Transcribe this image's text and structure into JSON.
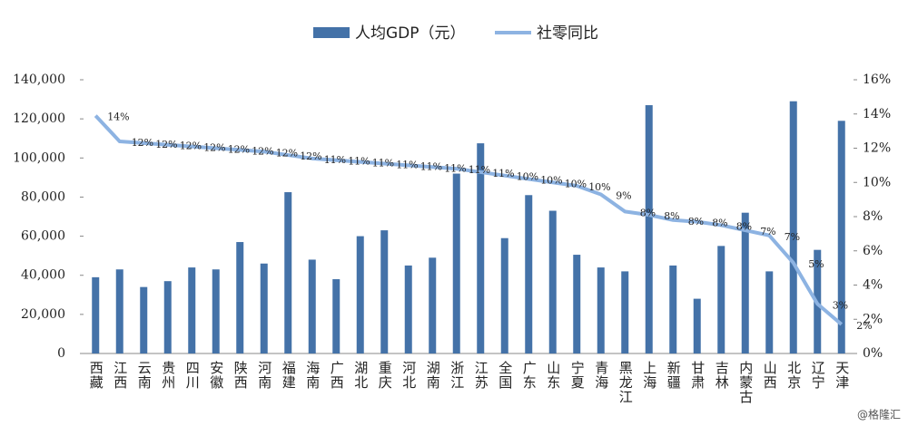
{
  "chart_data": {
    "type": "bar_line",
    "categories": [
      "西藏",
      "江西",
      "云南",
      "贵州",
      "四川",
      "安徽",
      "陕西",
      "河南",
      "福建",
      "海南",
      "广西",
      "湖北",
      "重庆",
      "河北",
      "湖南",
      "浙江",
      "江苏",
      "全国",
      "广东",
      "山东",
      "宁夏",
      "青海",
      "黑龙江",
      "上海",
      "新疆",
      "甘肃",
      "吉林",
      "内蒙古",
      "山西",
      "北京",
      "辽宁",
      "天津"
    ],
    "series": [
      {
        "name": "人均GDP（元）",
        "type": "bar",
        "color": "#4472a8",
        "values": [
          39000,
          43000,
          34000,
          37000,
          44000,
          43000,
          57000,
          46000,
          82500,
          48000,
          38000,
          60000,
          63000,
          45000,
          49000,
          92000,
          107500,
          59000,
          81000,
          73000,
          50500,
          44000,
          42000,
          127000,
          45000,
          28000,
          55000,
          72000,
          42000,
          129000,
          53000,
          119000
        ]
      },
      {
        "name": "社零同比",
        "type": "line",
        "axis": "y2",
        "color": "#8db3e2",
        "values": [
          13.9,
          12.4,
          12.3,
          12.2,
          12.1,
          12.0,
          11.9,
          11.8,
          11.6,
          11.4,
          11.3,
          11.2,
          11.1,
          11.0,
          10.9,
          10.8,
          10.6,
          10.4,
          10.2,
          10.0,
          9.8,
          9.3,
          8.3,
          8.1,
          7.8,
          7.7,
          7.5,
          7.2,
          6.9,
          5.3,
          2.9,
          1.7
        ],
        "value_labels": [
          "14%",
          "12%",
          "12%",
          "12%",
          "12%",
          "12%",
          "12%",
          "12%",
          "12%",
          "11%",
          "11%",
          "11%",
          "11%",
          "11%",
          "11%",
          "11%",
          "11%",
          "10%",
          "10%",
          "10%",
          "10%",
          "9%",
          "8%",
          "8%",
          "8%",
          "8%",
          "8%",
          "7%",
          "7%",
          "5%",
          "3%",
          "2%"
        ]
      }
    ],
    "ylim": [
      0,
      140000
    ],
    "yticks": [
      0,
      {
        "value": 20000,
        "label": "20,000"
      },
      {
        "value": 40000,
        "label": "40,000"
      },
      {
        "value": 60000,
        "label": "60,000"
      },
      {
        "value": 80000,
        "label": "80,000"
      },
      {
        "value": 100000,
        "label": "100,000"
      },
      {
        "value": 120000,
        "label": "120,000"
      },
      {
        "value": 140000,
        "label": "140,000"
      }
    ],
    "y2lim": [
      0,
      16
    ],
    "y2ticks": [
      {
        "value": 0,
        "label": "0%"
      },
      {
        "value": 2,
        "label": "2%"
      },
      {
        "value": 4,
        "label": "4%"
      },
      {
        "value": 6,
        "label": "6%"
      },
      {
        "value": 8,
        "label": "8%"
      },
      {
        "value": 10,
        "label": "10%"
      },
      {
        "value": 12,
        "label": "12%"
      },
      {
        "value": 14,
        "label": "14%"
      },
      {
        "value": 16,
        "label": "16%"
      }
    ],
    "legend": "top",
    "watermark": "@格隆汇"
  }
}
